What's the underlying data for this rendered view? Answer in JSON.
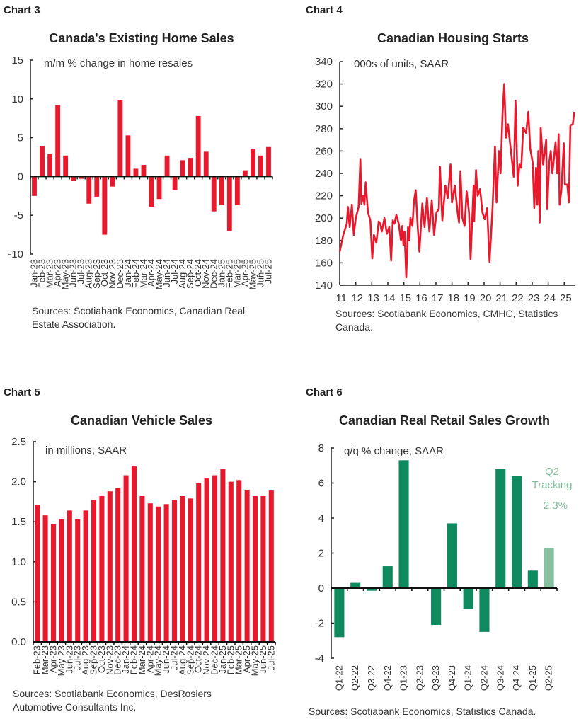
{
  "charts": [
    {
      "label": "Chart 3",
      "title": "Canada's Existing Home Sales",
      "sources": "Sources: Scotiabank Economics, Canadian Real Estate Association."
    },
    {
      "label": "Chart 4",
      "title": "Canadian Housing Starts",
      "sources": "Sources: Scotiabank Economics, CMHC, Statistics Canada."
    },
    {
      "label": "Chart 5",
      "title": "Canadian Vehicle Sales",
      "sources": "Sources: Scotiabank Economics, DesRosiers Automotive Consultants Inc."
    },
    {
      "label": "Chart 6",
      "title": "Canadian Real Retail Sales Growth",
      "sources": "Sources: Scotiabank Economics, Statistics Canada."
    }
  ],
  "chart_data": [
    {
      "type": "bar",
      "title": "Canada's Existing Home Sales",
      "ylabel": "m/m % change in home resales",
      "ylim": [
        -10,
        15
      ],
      "yticks": [
        "15",
        "10",
        "5",
        "0",
        "-5",
        "-10"
      ],
      "color": "#e8192c",
      "categories": [
        "Jan-23",
        "Feb-23",
        "Mar-23",
        "Apr-23",
        "May-23",
        "Jun-23",
        "Jul-23",
        "Aug-23",
        "Sep-23",
        "Oct-23",
        "Nov-23",
        "Dec-23",
        "Jan-24",
        "Feb-24",
        "Mar-24",
        "Apr-24",
        "May-24",
        "Jun-24",
        "Jul-24",
        "Aug-24",
        "Sep-24",
        "Oct-24",
        "Nov-24",
        "Dec-24",
        "Jan-25",
        "Feb-25",
        "Mar-25",
        "Apr-25",
        "May-25",
        "Jun-25",
        "Jul-25"
      ],
      "values": [
        -2.5,
        3.9,
        2.9,
        9.2,
        2.7,
        -0.6,
        -0.3,
        -3.5,
        -2.6,
        -7.5,
        -1.3,
        9.8,
        5.3,
        1.0,
        1.5,
        -3.9,
        -2.9,
        2.7,
        -1.7,
        2.1,
        2.4,
        7.8,
        3.2,
        -4.5,
        -3.7,
        -7.0,
        -3.7,
        0.8,
        3.5,
        2.7,
        3.8
      ],
      "grid": false
    },
    {
      "type": "line",
      "title": "Canadian Housing Starts",
      "ylabel": "000s of units, SAAR",
      "ylim": [
        140,
        340
      ],
      "yticks": [
        "340",
        "320",
        "300",
        "280",
        "260",
        "240",
        "220",
        "200",
        "180",
        "160",
        "140"
      ],
      "xticks": [
        "11",
        "12",
        "13",
        "14",
        "15",
        "16",
        "17",
        "18",
        "19",
        "20",
        "21",
        "22",
        "23",
        "24",
        "25"
      ],
      "color": "#e8192c",
      "grid": false,
      "x": [
        2011.0,
        2011.22,
        2011.44,
        2011.51,
        2011.62,
        2011.76,
        2011.88,
        2012.0,
        2012.18,
        2012.29,
        2012.35,
        2012.47,
        2012.54,
        2012.62,
        2012.76,
        2012.91,
        2013.03,
        2013.13,
        2013.28,
        2013.43,
        2013.53,
        2013.62,
        2013.79,
        2013.94,
        2014.09,
        2014.21,
        2014.31,
        2014.41,
        2014.53,
        2014.68,
        2014.82,
        2014.9,
        2014.97,
        2015.04,
        2015.15,
        2015.26,
        2015.34,
        2015.41,
        2015.53,
        2015.63,
        2015.74,
        2015.85,
        2015.97,
        2016.15,
        2016.29,
        2016.44,
        2016.59,
        2016.74,
        2016.88,
        2017.03,
        2017.18,
        2017.25,
        2017.4,
        2017.59,
        2017.74,
        2017.91,
        2018.0,
        2018.18,
        2018.35,
        2018.44,
        2018.53,
        2018.65,
        2018.79,
        2018.91,
        2019.06,
        2019.16,
        2019.35,
        2019.38,
        2019.5,
        2019.6,
        2019.75,
        2019.9,
        2020.04,
        2020.19,
        2020.34,
        2020.53,
        2020.68,
        2020.78,
        2020.93,
        2021.03,
        2021.15,
        2021.26,
        2021.37,
        2021.49,
        2021.66,
        2021.85,
        2021.96,
        2022.1,
        2022.21,
        2022.32,
        2022.44,
        2022.62,
        2022.76,
        2022.88,
        2023.03,
        2023.13,
        2023.24,
        2023.32,
        2023.38,
        2023.47,
        2023.53,
        2023.68,
        2023.87,
        2023.94,
        2024.06,
        2024.16,
        2024.26,
        2024.46,
        2024.56,
        2024.65,
        2024.71,
        2024.82,
        2024.97,
        2025.04,
        2025.19,
        2025.29,
        2025.38,
        2025.53,
        2025.63
      ],
      "y": [
        170,
        185,
        195,
        210,
        192,
        212,
        185,
        200,
        210,
        253,
        213,
        220,
        212,
        232,
        205,
        198,
        164,
        185,
        178,
        197,
        195,
        188,
        200,
        186,
        192,
        162,
        198,
        195,
        203,
        195,
        180,
        193,
        176,
        188,
        147,
        192,
        180,
        200,
        193,
        215,
        225,
        195,
        170,
        213,
        192,
        218,
        188,
        216,
        185,
        205,
        208,
        246,
        198,
        229,
        218,
        248,
        214,
        229,
        205,
        196,
        242,
        200,
        193,
        224,
        205,
        163,
        229,
        197,
        243,
        220,
        226,
        205,
        199,
        209,
        161,
        210,
        264,
        214,
        260,
        240,
        292,
        320,
        272,
        284,
        262,
        237,
        305,
        229,
        248,
        245,
        281,
        276,
        295,
        262,
        250,
        209,
        245,
        212,
        260,
        196,
        281,
        248,
        270,
        208,
        250,
        260,
        240,
        268,
        240,
        275,
        212,
        225,
        267,
        230,
        230,
        214,
        283,
        284,
        295
      ]
    },
    {
      "type": "bar",
      "title": "Canadian Vehicle Sales",
      "ylabel": "in millions, SAAR",
      "ylim": [
        0,
        2.5
      ],
      "yticks": [
        "2.5",
        "2.0",
        "1.5",
        "1.0",
        "0.5",
        "0.0"
      ],
      "color": "#e8192c",
      "grid": false,
      "categories": [
        "Feb-23",
        "Mar-23",
        "Apr-23",
        "May-23",
        "Jun-23",
        "Jul-23",
        "Aug-23",
        "Sep-23",
        "Oct-23",
        "Nov-23",
        "Dec-23",
        "Jan-24",
        "Feb-24",
        "Mar-24",
        "Apr-24",
        "May-24",
        "Jun-24",
        "Jul-24",
        "Aug-24",
        "Sep-24",
        "Oct-24",
        "Nov-24",
        "Dec-24",
        "Jan-25",
        "Feb-25",
        "Mar-25",
        "Apr-25",
        "May-25",
        "Jun-25",
        "Jul-25"
      ],
      "values": [
        1.71,
        1.58,
        1.47,
        1.53,
        1.64,
        1.53,
        1.64,
        1.77,
        1.82,
        1.88,
        1.92,
        2.08,
        2.19,
        1.82,
        1.73,
        1.69,
        1.72,
        1.77,
        1.82,
        1.79,
        1.98,
        2.04,
        2.08,
        2.16,
        2.0,
        2.02,
        1.9,
        1.82,
        1.82,
        1.89
      ]
    },
    {
      "type": "bar",
      "title": "Canadian Real Retail Sales Growth",
      "ylabel": "q/q % change, SAAR",
      "ylim": [
        -4,
        8
      ],
      "yticks": [
        "8",
        "6",
        "4",
        "2",
        "0",
        "-2",
        "-4"
      ],
      "color": "#0f8a5f",
      "tracking_color": "#86bf9d",
      "grid": false,
      "categories": [
        "Q1-22",
        "Q2-22",
        "Q3-22",
        "Q4-22",
        "Q1-23",
        "Q2-23",
        "Q3-23",
        "Q4-23",
        "Q1-24",
        "Q2-24",
        "Q3-24",
        "Q4-24",
        "Q1-25",
        "Q2-25"
      ],
      "values": [
        -2.8,
        0.3,
        -0.15,
        1.25,
        7.3,
        0,
        -2.1,
        3.7,
        -1.2,
        -2.5,
        6.8,
        6.4,
        1.0,
        2.3
      ],
      "annotation": {
        "line1": "Q2",
        "line2": "Tracking",
        "line3": "2.3%"
      }
    }
  ]
}
